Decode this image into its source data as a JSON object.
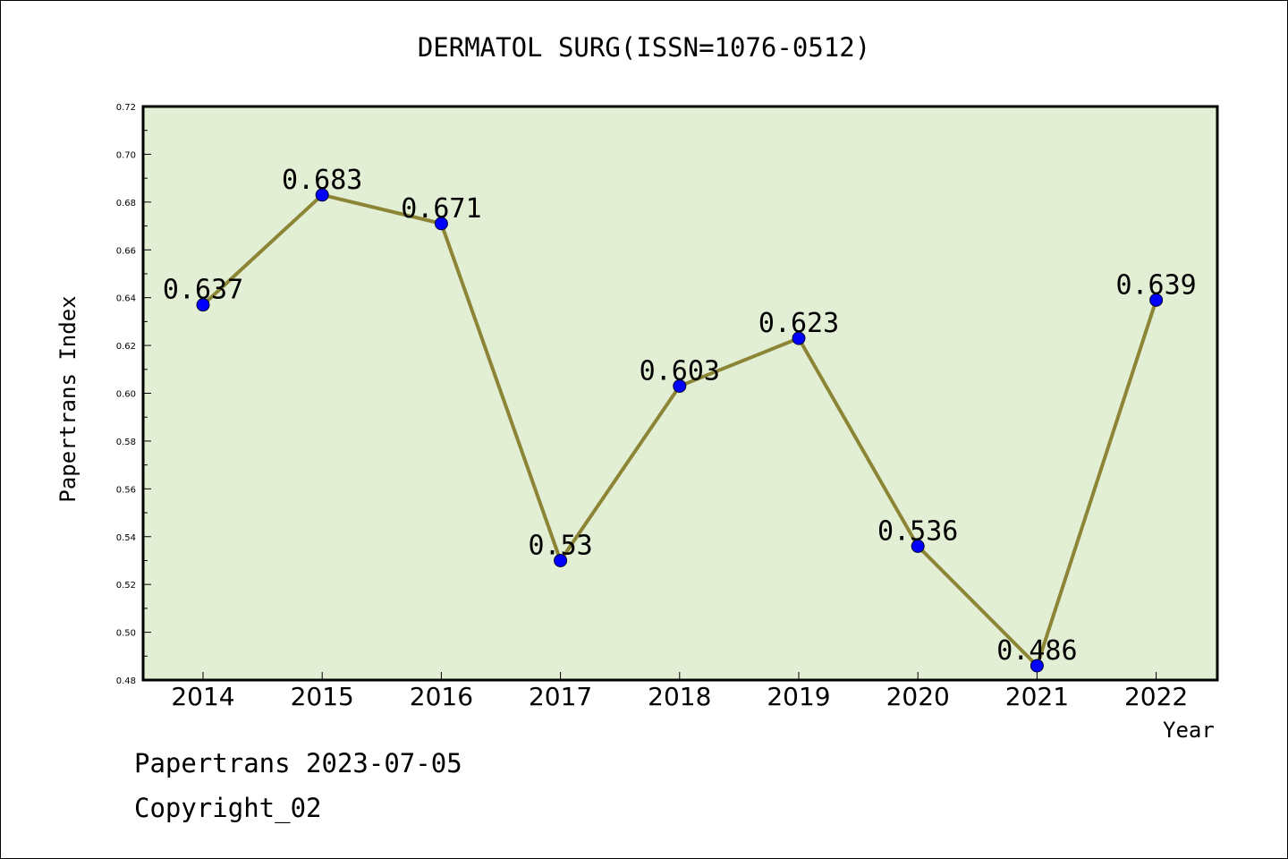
{
  "title": "DERMATOL SURG(ISSN=1076-0512)",
  "ylabel": "Papertrans Index",
  "xlabel": "Year",
  "footer": {
    "line1": "Papertrans 2023-07-05",
    "line2": "Copyright_02"
  },
  "colors": {
    "plot_background": "#e2efd5",
    "line": "#8b8535",
    "marker": "#0000ff"
  },
  "chart_data": {
    "type": "line",
    "title": "DERMATOL SURG(ISSN=1076-0512)",
    "xlabel": "Year",
    "ylabel": "Papertrans Index",
    "categories": [
      "2014",
      "2015",
      "2016",
      "2017",
      "2018",
      "2019",
      "2020",
      "2021",
      "2022"
    ],
    "values": [
      0.637,
      0.683,
      0.671,
      0.53,
      0.603,
      0.623,
      0.536,
      0.486,
      0.639
    ],
    "data_labels": [
      "0.637",
      "0.683",
      "0.671",
      "0.53",
      "0.603",
      "0.623",
      "0.536",
      "0.486",
      "0.639"
    ],
    "ylim": [
      0.48,
      0.72
    ],
    "yticks": [
      "0.48",
      "0.50",
      "0.52",
      "0.54",
      "0.56",
      "0.58",
      "0.60",
      "0.62",
      "0.64",
      "0.66",
      "0.68",
      "0.70",
      "0.72"
    ],
    "grid": false,
    "legend": "none"
  }
}
